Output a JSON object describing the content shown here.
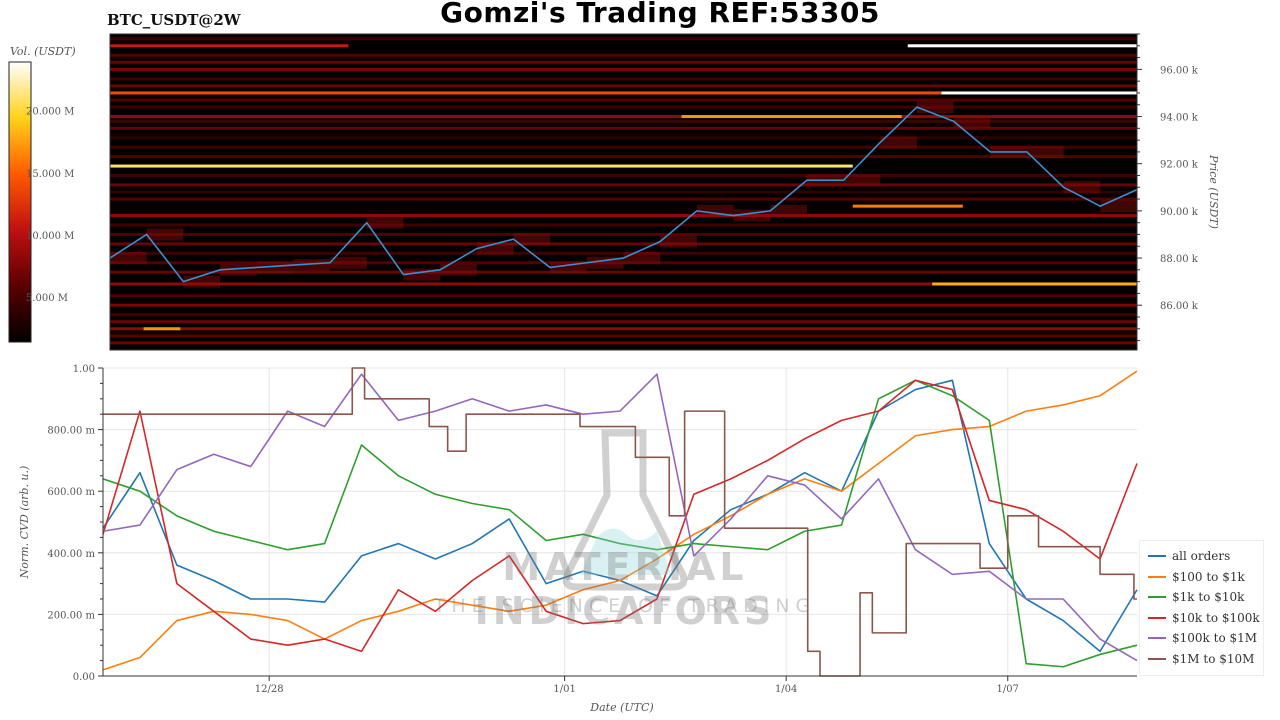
{
  "header": {
    "title": "Gomzi's Trading REF:53305",
    "pair": "BTC_USDT@2W"
  },
  "watermark": {
    "title": "MATERIAL INDICATORS",
    "subtitle": "THE SCIENCE OF TRADING"
  },
  "chart_data": [
    {
      "type": "heatmap",
      "title": "BTC_USDT@2W",
      "ylabel": "Price (USDT)",
      "ylim": [
        84.1,
        97.5
      ],
      "yticks": [
        86,
        88,
        90,
        92,
        94,
        96
      ],
      "ytick_labels": [
        "86.00 k",
        "88.00 k",
        "90.00 k",
        "92.00 k",
        "94.00 k",
        "96.00 k"
      ],
      "xlim": [
        "12/25 18:00",
        "1/08 18:00"
      ],
      "colorbar": {
        "label": "Vol. (USDT)",
        "range": [
          1.4,
          23.9
        ],
        "ticks": [
          5,
          10,
          15,
          20
        ],
        "tick_labels": [
          "5.000 M",
          "10.000 M",
          "15.000 M",
          "20.000 M"
        ],
        "colormap": [
          "#000000",
          "#5a0000",
          "#c01010",
          "#ff5a00",
          "#ffd21a",
          "#ffffff"
        ]
      },
      "levels": [
        {
          "price": 97.3,
          "vol": 5
        },
        {
          "price": 96.6,
          "vol": 6
        },
        {
          "price": 96.3,
          "vol": 7
        },
        {
          "price": 96.0,
          "vol": 8
        },
        {
          "price": 95.6,
          "vol": 5
        },
        {
          "price": 95.3,
          "vol": 7
        },
        {
          "price": 94.7,
          "vol": 6
        },
        {
          "price": 94.4,
          "vol": 5
        },
        {
          "price": 94.0,
          "vol": 9
        },
        {
          "price": 93.8,
          "vol": 5
        },
        {
          "price": 93.5,
          "vol": 7
        },
        {
          "price": 93.1,
          "vol": 4
        },
        {
          "price": 92.7,
          "vol": 5
        },
        {
          "price": 92.3,
          "vol": 6
        },
        {
          "price": 91.5,
          "vol": 5
        },
        {
          "price": 91.1,
          "vol": 7
        },
        {
          "price": 90.8,
          "vol": 4
        },
        {
          "price": 90.5,
          "vol": 6
        },
        {
          "price": 89.8,
          "vol": 9
        },
        {
          "price": 89.4,
          "vol": 5
        },
        {
          "price": 89.0,
          "vol": 6
        },
        {
          "price": 88.6,
          "vol": 7
        },
        {
          "price": 88.2,
          "vol": 5
        },
        {
          "price": 87.8,
          "vol": 6
        },
        {
          "price": 87.4,
          "vol": 7
        },
        {
          "price": 86.9,
          "vol": 9
        },
        {
          "price": 86.4,
          "vol": 6
        },
        {
          "price": 86.0,
          "vol": 8
        },
        {
          "price": 85.6,
          "vol": 5
        },
        {
          "price": 85.3,
          "vol": 7
        },
        {
          "price": 85.0,
          "vol": 9
        },
        {
          "price": 84.7,
          "vol": 6
        },
        {
          "price": 84.4,
          "vol": 7
        }
      ],
      "segments": [
        {
          "price": 97.0,
          "start": "12/25 18:00",
          "end": "12/29 00:00",
          "vol": 11
        },
        {
          "price": 97.0,
          "start": "1/05 15:00",
          "end": "1/08 18:00",
          "vol": 24
        },
        {
          "price": 95.0,
          "start": "12/25 18:00",
          "end": "1/06 02:00",
          "vol": 14
        },
        {
          "price": 95.0,
          "start": "1/06 02:00",
          "end": "1/08 18:00",
          "vol": 24
        },
        {
          "price": 94.0,
          "start": "1/02 13:00",
          "end": "1/05 13:00",
          "vol": 17
        },
        {
          "price": 91.9,
          "start": "12/25 18:00",
          "end": "1/04 21:00",
          "vol": 21
        },
        {
          "price": 90.2,
          "start": "1/04 21:00",
          "end": "1/06 09:00",
          "vol": 16
        },
        {
          "price": 86.9,
          "start": "1/05 23:00",
          "end": "1/08 18:00",
          "vol": 18
        },
        {
          "price": 85.0,
          "start": "12/26 05:00",
          "end": "12/26 17:00",
          "vol": 17
        }
      ],
      "price_series": {
        "x": [
          "12/25 18:00",
          "12/26 06:00",
          "12/26 18:00",
          "12/27 06:00",
          "12/27 18:00",
          "12/28 06:00",
          "12/28 18:00",
          "12/29 06:00",
          "12/29 18:00",
          "12/30 06:00",
          "12/30 18:00",
          "12/31 06:00",
          "12/31 18:00",
          "1/01 06:00",
          "1/01 18:00",
          "1/02 06:00",
          "1/02 18:00",
          "1/03 06:00",
          "1/03 18:00",
          "1/04 06:00",
          "1/04 18:00",
          "1/05 06:00",
          "1/05 18:00",
          "1/06 06:00",
          "1/06 18:00",
          "1/07 06:00",
          "1/07 18:00",
          "1/08 06:00",
          "1/08 18:00"
        ],
        "y": [
          88.0,
          89.0,
          87.0,
          87.5,
          87.6,
          87.7,
          87.8,
          89.5,
          87.3,
          87.5,
          88.4,
          88.8,
          87.6,
          87.8,
          88.0,
          88.7,
          90.0,
          89.8,
          90.0,
          91.3,
          91.3,
          92.9,
          94.4,
          93.8,
          92.5,
          92.5,
          91.0,
          90.2,
          90.9
        ],
        "color": "#3a8fd0"
      }
    },
    {
      "type": "line",
      "xlabel": "Date (UTC)",
      "ylabel": "Norm. CVD (arb. u.)",
      "ylim": [
        0,
        1
      ],
      "yticks": [
        0,
        0.2,
        0.4,
        0.6,
        0.8,
        1.0
      ],
      "ytick_labels": [
        "0.00",
        "200.00 m",
        "400.00 m",
        "600.00 m",
        "800.00 m",
        "1.00"
      ],
      "xlim": [
        "12/25 18:00",
        "1/08 18:00"
      ],
      "xticks": [
        "12/28 00:00",
        "1/01 00:00",
        "1/04 00:00",
        "1/07 00:00"
      ],
      "xtick_labels": [
        "12/28",
        "1/01",
        "1/04",
        "1/07"
      ],
      "grid": true,
      "legend": "right",
      "x": [
        "12/25 18:00",
        "12/26 06:00",
        "12/26 18:00",
        "12/27 06:00",
        "12/27 18:00",
        "12/28 06:00",
        "12/28 18:00",
        "12/29 06:00",
        "12/29 18:00",
        "12/30 06:00",
        "12/30 18:00",
        "12/31 06:00",
        "12/31 18:00",
        "1/01 06:00",
        "1/01 18:00",
        "1/02 06:00",
        "1/02 18:00",
        "1/03 06:00",
        "1/03 18:00",
        "1/04 06:00",
        "1/04 18:00",
        "1/05 06:00",
        "1/05 18:00",
        "1/06 06:00",
        "1/06 18:00",
        "1/07 06:00",
        "1/07 18:00",
        "1/08 06:00",
        "1/08 18:00"
      ],
      "series": [
        {
          "name": "all orders",
          "color": "#1f77b4",
          "values": [
            0.48,
            0.66,
            0.36,
            0.31,
            0.25,
            0.25,
            0.24,
            0.39,
            0.43,
            0.38,
            0.43,
            0.51,
            0.3,
            0.34,
            0.31,
            0.26,
            0.44,
            0.54,
            0.59,
            0.66,
            0.6,
            0.86,
            0.93,
            0.96,
            0.43,
            0.25,
            0.18,
            0.08,
            0.28
          ]
        },
        {
          "name": "$100 to $1k",
          "color": "#ff7f0e",
          "values": [
            0.02,
            0.06,
            0.18,
            0.21,
            0.2,
            0.18,
            0.12,
            0.18,
            0.21,
            0.25,
            0.23,
            0.21,
            0.23,
            0.28,
            0.31,
            0.38,
            0.46,
            0.52,
            0.59,
            0.64,
            0.6,
            0.69,
            0.78,
            0.8,
            0.81,
            0.86,
            0.88,
            0.91,
            0.99
          ]
        },
        {
          "name": "$1k to $10k",
          "color": "#2ca02c",
          "values": [
            0.64,
            0.6,
            0.52,
            0.47,
            0.44,
            0.41,
            0.43,
            0.75,
            0.65,
            0.59,
            0.56,
            0.54,
            0.44,
            0.46,
            0.43,
            0.41,
            0.43,
            0.42,
            0.41,
            0.47,
            0.49,
            0.9,
            0.96,
            0.91,
            0.83,
            0.04,
            0.03,
            0.07,
            0.1
          ]
        },
        {
          "name": "$10k to $100k",
          "color": "#d62728",
          "values": [
            0.46,
            0.86,
            0.3,
            0.21,
            0.12,
            0.1,
            0.12,
            0.08,
            0.28,
            0.21,
            0.31,
            0.39,
            0.21,
            0.17,
            0.18,
            0.25,
            0.59,
            0.64,
            0.7,
            0.77,
            0.83,
            0.86,
            0.96,
            0.93,
            0.57,
            0.54,
            0.47,
            0.38,
            0.69
          ]
        },
        {
          "name": "$100k to $1M",
          "color": "#9467bd",
          "values": [
            0.47,
            0.49,
            0.67,
            0.72,
            0.68,
            0.86,
            0.81,
            0.98,
            0.83,
            0.86,
            0.9,
            0.86,
            0.88,
            0.85,
            0.86,
            0.98,
            0.39,
            0.51,
            0.65,
            0.62,
            0.51,
            0.64,
            0.41,
            0.33,
            0.34,
            0.25,
            0.25,
            0.12,
            0.05
          ]
        },
        {
          "name": "$1M to $10M",
          "color": "#8c564b",
          "step": true,
          "x": [
            "12/25 18:00",
            "12/29 03:00",
            "12/29 07:00",
            "12/30 04:00",
            "12/30 10:00",
            "12/30 16:00",
            "1/01 05:00",
            "1/01 23:00",
            "1/02 10:00",
            "1/02 15:00",
            "1/03 04:00",
            "1/04 07:00",
            "1/04 11:00",
            "1/05 00:00",
            "1/05 04:00",
            "1/05 15:00",
            "1/06 15:00",
            "1/07 00:00",
            "1/07 10:00",
            "1/08 06:00",
            "1/08 17:00"
          ],
          "values": [
            0.85,
            1.0,
            0.9,
            0.81,
            0.73,
            0.85,
            0.81,
            0.71,
            0.52,
            0.86,
            0.48,
            0.08,
            0.0,
            0.27,
            0.14,
            0.43,
            0.35,
            0.52,
            0.42,
            0.33,
            0.25
          ]
        }
      ]
    }
  ]
}
